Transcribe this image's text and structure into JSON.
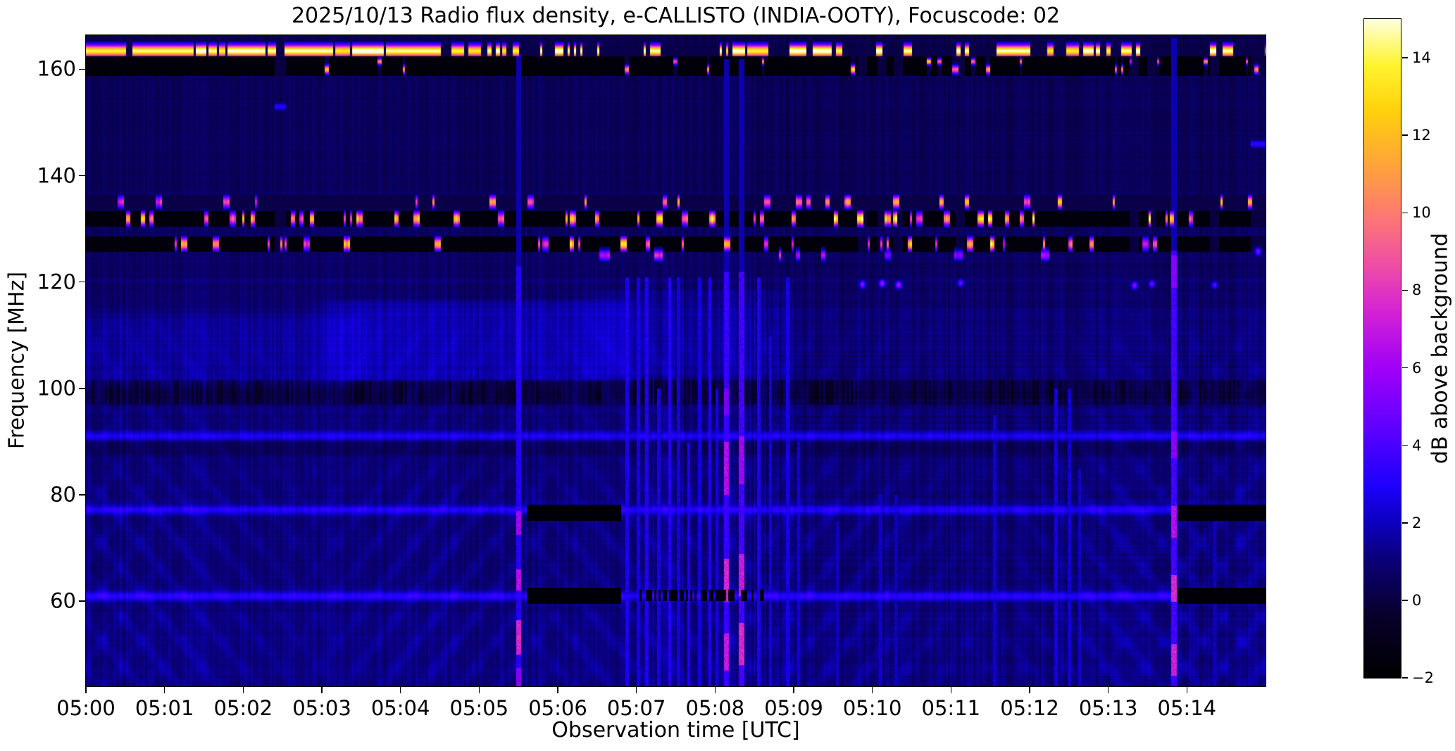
{
  "figure": {
    "title": "2025/10/13  Radio flux density, e-CALLISTO (INDIA-OOTY), Focuscode: 02",
    "background_color": "#ffffff",
    "spine_color": "#000000"
  },
  "chart_data": {
    "type": "heatmap",
    "title": "2025/10/13  Radio flux density, e-CALLISTO (INDIA-OOTY), Focuscode: 02",
    "xlabel": "Observation time [UTC]",
    "ylabel": "Frequency [MHz]",
    "colorbar_label": "dB above background",
    "x_ticks": [
      "05:00",
      "05:01",
      "05:02",
      "05:03",
      "05:04",
      "05:05",
      "05:06",
      "05:07",
      "05:08",
      "05:09",
      "05:10",
      "05:11",
      "05:12",
      "05:13",
      "05:14"
    ],
    "x_range_minutes_after_0500": [
      0,
      15
    ],
    "y_ticks": [
      160,
      140,
      120,
      100,
      80,
      60
    ],
    "freq_range_mhz": [
      44.0,
      166.4
    ],
    "value_range_db": [
      -2,
      15
    ],
    "colorbar_tick_values": [
      14,
      12,
      10,
      8,
      6,
      4,
      2,
      0,
      -2
    ],
    "colorbar_tick_labels": [
      "14",
      "12",
      "10",
      "8",
      "6",
      "4",
      "2",
      "0",
      "−2"
    ],
    "grid": false,
    "colormap_stops": [
      [
        0.0,
        0,
        0,
        0
      ],
      [
        0.09,
        8,
        0,
        40
      ],
      [
        0.18,
        10,
        0,
        121
      ],
      [
        0.235,
        13,
        0,
        190
      ],
      [
        0.29,
        28,
        0,
        252
      ],
      [
        0.38,
        95,
        0,
        255
      ],
      [
        0.47,
        160,
        0,
        248
      ],
      [
        0.555,
        213,
        35,
        213
      ],
      [
        0.63,
        240,
        80,
        162
      ],
      [
        0.7,
        252,
        120,
        114
      ],
      [
        0.78,
        255,
        165,
        57
      ],
      [
        0.86,
        255,
        208,
        12
      ],
      [
        0.93,
        255,
        244,
        46
      ],
      [
        1.0,
        255,
        255,
        224
      ]
    ],
    "features": {
      "background": {
        "upper_mean_db": 0.5,
        "lower_mean_db": 0.95,
        "noise_amp_db": 0.75,
        "ripple_amp_db": 0.34,
        "right_texture_start_min": 8.6
      },
      "rfi_top_stripe": {
        "f_center": 163.5,
        "f_halfwidth": 0.75,
        "black_band_f": [
          158.9,
          162.35
        ],
        "continuous_until_min": 4.3,
        "core_value": 14.6,
        "gap_value": 0.2,
        "dot_f_center": 160.0,
        "dot2_f_center": 161.5
      },
      "rfi_dot_bands": [
        {
          "f": [
            133.9,
            136.3
          ],
          "lane_value": 0.15,
          "dot_prob": 0.1,
          "dot_value": [
            7,
            13
          ]
        },
        {
          "f": [
            130.6,
            133.3
          ],
          "lane_value": -1.55,
          "dot_prob": 0.17,
          "dot_value": [
            8,
            14.5
          ]
        },
        {
          "f": [
            125.9,
            128.5
          ],
          "lane_value": -1.55,
          "dot_prob": 0.12,
          "dot_value": [
            7,
            13
          ],
          "blob_f": [
            124.2,
            126.0
          ],
          "blob_prob": 0.035,
          "blob_value": [
            5,
            7.5
          ]
        }
      ],
      "pink_dots": [
        {
          "t": 9.87,
          "f": 119.6,
          "v": 6.5
        },
        {
          "t": 10.12,
          "f": 119.8,
          "v": 7.0
        },
        {
          "t": 10.33,
          "f": 119.5,
          "v": 7.5
        },
        {
          "t": 11.12,
          "f": 119.9,
          "v": 5.5
        },
        {
          "t": 13.33,
          "f": 119.4,
          "v": 6.5
        },
        {
          "t": 13.55,
          "f": 119.7,
          "v": 5.5
        },
        {
          "t": 14.35,
          "f": 119.5,
          "v": 5.0
        },
        {
          "t": 14.9,
          "f": 125.8,
          "v": 6.0
        }
      ],
      "blue_dashes": [
        {
          "t0": 14.82,
          "t1": 15.0,
          "f": 146.0,
          "v": 3.6
        },
        {
          "t0": 2.4,
          "t1": 2.54,
          "f": 153.0,
          "v": 3.2
        }
      ],
      "h_lines": [
        {
          "f": 91.1,
          "v": 1.9,
          "sigma": 0.6
        },
        {
          "f": 77.2,
          "v": 2.1,
          "sigma": 0.62
        },
        {
          "f": 61.0,
          "v": 2.3,
          "sigma": 0.62
        }
      ],
      "dark_lanes": [
        {
          "f": [
            97.3,
            101.3
          ],
          "depth": 1.1,
          "dashy": true
        },
        {
          "f": [
            87.8,
            89.8
          ],
          "depth": 0.55
        },
        {
          "f": [
            115.5,
            119.5
          ],
          "depth": 0.3
        }
      ],
      "black_bars": [
        {
          "t": [
            5.6,
            6.8
          ],
          "f": [
            75.2,
            78.2
          ]
        },
        {
          "t": [
            5.6,
            6.8
          ],
          "f": [
            59.6,
            62.5
          ]
        },
        {
          "t": [
            13.88,
            15.0
          ],
          "f": [
            75.2,
            78.2
          ]
        },
        {
          "t": [
            13.88,
            15.0
          ],
          "f": [
            59.6,
            62.5
          ]
        }
      ],
      "black_dash_row": {
        "t": [
          7.0,
          8.65
        ],
        "f": [
          60.1,
          62.2
        ],
        "duty": 0.6
      },
      "streaks": [
        {
          "t": 5.505,
          "w": 0.055,
          "v": 3.1,
          "f_max": 123,
          "segs": [
            [
              44,
              47.5,
              5.5
            ],
            [
              50,
              56.5,
              7.5
            ],
            [
              62,
              66,
              6.5
            ],
            [
              72.5,
              77,
              6.0
            ]
          ]
        },
        {
          "t": 8.145,
          "w": 0.06,
          "v": 3.6,
          "f_max": 122,
          "segs": [
            [
              47,
              54,
              7.0
            ],
            [
              60,
              68,
              7.5
            ],
            [
              80,
              90,
              6.5
            ],
            [
              95,
              100,
              5.0
            ]
          ]
        },
        {
          "t": 8.335,
          "w": 0.06,
          "v": 3.8,
          "f_max": 122,
          "segs": [
            [
              48,
              56,
              7.5
            ],
            [
              61,
              69,
              7.0
            ],
            [
              82,
              91,
              6.0
            ]
          ]
        },
        {
          "t": 13.835,
          "w": 0.06,
          "v": 3.8,
          "f_max": 126,
          "segs": [
            [
              46,
              52,
              7.2
            ],
            [
              60,
              65,
              7.5
            ],
            [
              72,
              78,
              6.5
            ],
            [
              87,
              92,
              5.5
            ],
            [
              119,
              125,
              5.5
            ]
          ]
        }
      ],
      "thin_streaks": [
        {
          "t": 6.88,
          "v": 3.0,
          "f_max": 121
        },
        {
          "t": 7.02,
          "v": 2.7,
          "f_max": 121
        },
        {
          "t": 7.13,
          "v": 3.1,
          "f_max": 121
        },
        {
          "t": 7.28,
          "v": 2.8,
          "f_max": 100
        },
        {
          "t": 7.42,
          "v": 3.2,
          "f_max": 121
        },
        {
          "t": 7.53,
          "v": 2.7,
          "f_max": 121
        },
        {
          "t": 7.66,
          "v": 3.0,
          "f_max": 90
        },
        {
          "t": 7.8,
          "v": 2.6,
          "f_max": 121
        },
        {
          "t": 7.93,
          "v": 3.1,
          "f_max": 121
        },
        {
          "t": 8.02,
          "v": 2.7,
          "f_max": 100
        },
        {
          "t": 8.55,
          "v": 3.0,
          "f_max": 121
        },
        {
          "t": 8.7,
          "v": 2.6,
          "f_max": 110
        },
        {
          "t": 8.92,
          "v": 2.8,
          "f_max": 121
        },
        {
          "t": 9.06,
          "v": 2.5,
          "f_max": 90
        },
        {
          "t": 9.55,
          "v": 2.2,
          "f_max": 75
        },
        {
          "t": 10.1,
          "v": 2.3,
          "f_max": 80
        },
        {
          "t": 10.3,
          "v": 2.1,
          "f_max": 80
        },
        {
          "t": 11.55,
          "v": 2.3,
          "f_max": 95
        },
        {
          "t": 12.33,
          "v": 2.6,
          "f_max": 100
        },
        {
          "t": 12.5,
          "v": 2.4,
          "f_max": 100
        },
        {
          "t": 12.63,
          "v": 2.3,
          "f_max": 85
        },
        {
          "t": 14.35,
          "v": 2.1,
          "f_max": 75
        }
      ],
      "bright_patches": [
        {
          "t": [
            3.3,
            6.7
          ],
          "f": [
            102,
            116
          ],
          "v": 0.8
        },
        {
          "t": [
            0.0,
            3.3
          ],
          "f": [
            101,
            113
          ],
          "v": 0.45
        },
        {
          "t": [
            6.7,
            8.6
          ],
          "f": [
            103,
            118
          ],
          "v": 0.5
        }
      ]
    }
  }
}
